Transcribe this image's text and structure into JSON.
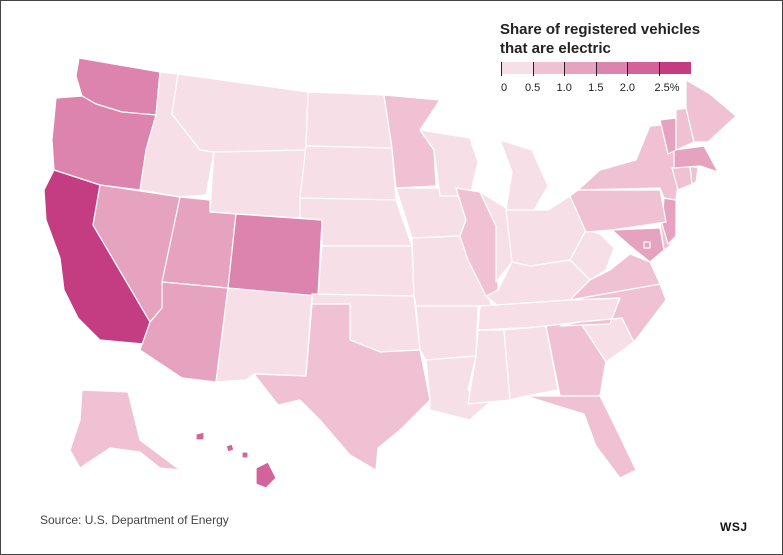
{
  "legend": {
    "title_line1": "Share of registered vehicles",
    "title_line2": "that are electric",
    "labels": [
      "0",
      "0.5",
      "1.0",
      "1.5",
      "2.0",
      "2.5%"
    ],
    "colors": [
      "#f7dfe7",
      "#efc1d3",
      "#e6a3c0",
      "#dc84ad",
      "#d3639a",
      "#c43d82"
    ]
  },
  "source": "Source: U.S. Department of Energy",
  "logo": "WSJ",
  "chart_data": {
    "type": "choropleth",
    "metric": "Share of registered vehicles that are electric (%)",
    "scale": [
      0,
      0.5,
      1.0,
      1.5,
      2.0,
      2.5
    ],
    "states": {
      "WA": 1.6,
      "OR": 1.5,
      "CA": 2.6,
      "NV": 1.2,
      "ID": 0.4,
      "MT": 0.3,
      "WY": 0.3,
      "UT": 1.2,
      "AZ": 1.1,
      "NM": 0.4,
      "CO": 1.5,
      "ND": 0.2,
      "SD": 0.3,
      "NE": 0.3,
      "KS": 0.4,
      "OK": 0.4,
      "TX": 0.7,
      "MN": 0.7,
      "IA": 0.3,
      "MO": 0.4,
      "AR": 0.3,
      "LA": 0.3,
      "WI": 0.4,
      "IL": 0.7,
      "MI": 0.4,
      "IN": 0.4,
      "OH": 0.4,
      "KY": 0.3,
      "TN": 0.4,
      "MS": 0.3,
      "AL": 0.3,
      "GA": 0.8,
      "FL": 0.8,
      "SC": 0.4,
      "NC": 0.5,
      "VA": 0.8,
      "WV": 0.2,
      "MD": 1.1,
      "DE": 0.7,
      "NJ": 1.1,
      "PA": 0.5,
      "NY": 0.7,
      "CT": 0.7,
      "RI": 0.6,
      "MA": 1.1,
      "VT": 1.1,
      "NH": 0.7,
      "ME": 0.5,
      "DC": 1.0,
      "AK": 0.6,
      "HI": 2.0
    }
  }
}
